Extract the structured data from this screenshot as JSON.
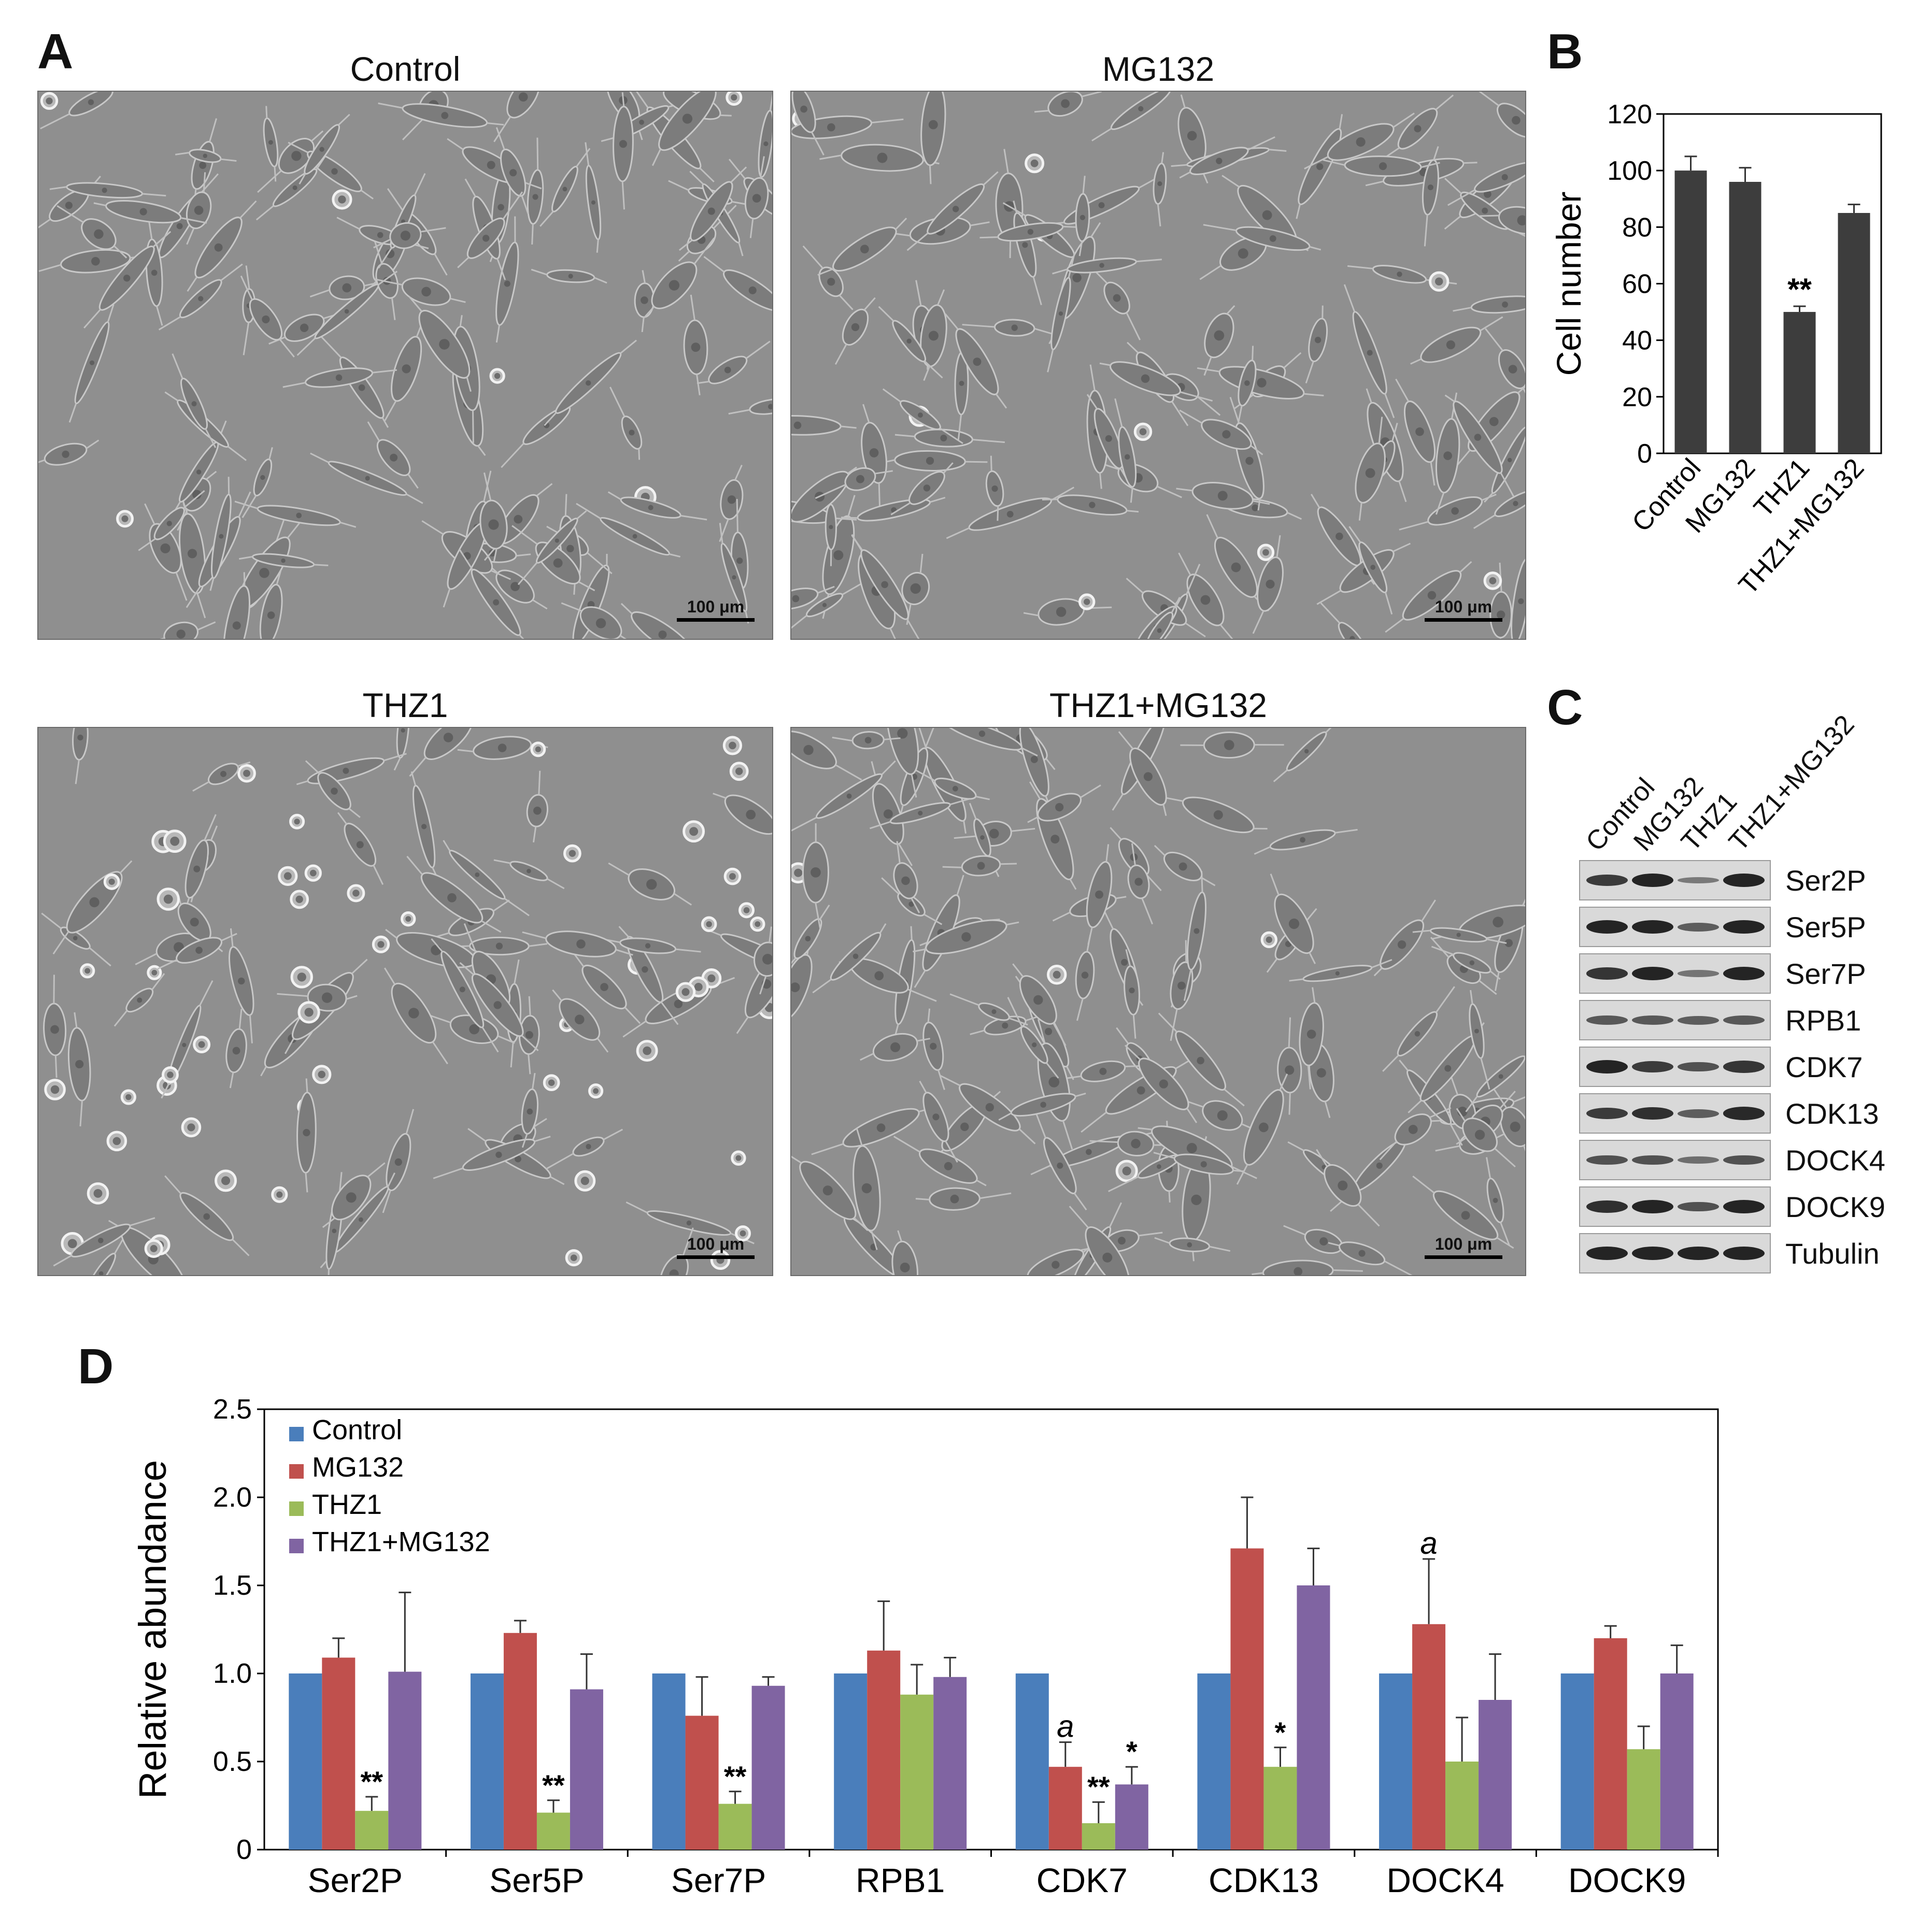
{
  "panels": {
    "a": "A",
    "b": "B",
    "c": "C",
    "d": "D"
  },
  "micrographs": [
    {
      "title": "Control",
      "scale_bar": "100 μm"
    },
    {
      "title": "MG132",
      "scale_bar": "100 μm"
    },
    {
      "title": "THZ1",
      "scale_bar": "100 μm"
    },
    {
      "title": "THZ1+MG132",
      "scale_bar": "100 μm"
    }
  ],
  "blot": {
    "lanes": [
      "Control",
      "MG132",
      "THZ1",
      "THZ1+MG132"
    ],
    "rows": [
      "Ser2P",
      "Ser5P",
      "Ser7P",
      "RPB1",
      "CDK7",
      "CDK13",
      "DOCK4",
      "DOCK9",
      "Tubulin"
    ]
  },
  "chart_data": [
    {
      "type": "bar",
      "ylabel": "Cell number",
      "categories": [
        "Control",
        "MG132",
        "THZ1",
        "THZ1+MG132"
      ],
      "values": [
        100,
        96,
        50,
        85
      ],
      "errors": [
        5,
        5,
        2,
        3
      ],
      "annotations": [
        "",
        "",
        "**",
        ""
      ],
      "ylim": [
        0,
        120
      ],
      "yticks": [
        0,
        20,
        40,
        60,
        80,
        100,
        120
      ],
      "color": "#3d3d3d"
    },
    {
      "type": "bar",
      "ylabel": "Relative abundance",
      "categories": [
        "Ser2P",
        "Ser5P",
        "Ser7P",
        "RPB1",
        "CDK7",
        "CDK13",
        "DOCK4",
        "DOCK9"
      ],
      "ylim": [
        0,
        2.5
      ],
      "yticks": [
        "0",
        "0.5",
        "1.0",
        "1.5",
        "2.0",
        "2.5"
      ],
      "legend_position": "top-left",
      "series": [
        {
          "name": "Control",
          "color": "#4a7ebb",
          "values": [
            1.0,
            1.0,
            1.0,
            1.0,
            1.0,
            1.0,
            1.0,
            1.0
          ],
          "errors": [
            0,
            0,
            0,
            0,
            0,
            0,
            0,
            0
          ],
          "annotations": [
            "",
            "",
            "",
            "",
            "",
            "",
            "",
            ""
          ]
        },
        {
          "name": "MG132",
          "color": "#c0504d",
          "values": [
            1.09,
            1.23,
            0.76,
            1.13,
            0.47,
            1.71,
            1.28,
            1.2
          ],
          "errors": [
            0.11,
            0.07,
            0.22,
            0.28,
            0.14,
            0.29,
            0.37,
            0.07
          ],
          "annotations": [
            "",
            "",
            "",
            "",
            "a",
            "",
            "a",
            ""
          ]
        },
        {
          "name": "THZ1",
          "color": "#9bbb59",
          "values": [
            0.22,
            0.21,
            0.26,
            0.88,
            0.15,
            0.47,
            0.5,
            0.57
          ],
          "errors": [
            0.08,
            0.07,
            0.07,
            0.17,
            0.12,
            0.11,
            0.25,
            0.13
          ],
          "annotations": [
            "**",
            "**",
            "**",
            "",
            "**",
            "*",
            "",
            ""
          ]
        },
        {
          "name": "THZ1+MG132",
          "color": "#8064a2",
          "values": [
            1.01,
            0.91,
            0.93,
            0.98,
            0.37,
            1.5,
            0.85,
            1.0
          ],
          "errors": [
            0.45,
            0.2,
            0.05,
            0.11,
            0.1,
            0.21,
            0.26,
            0.16
          ],
          "annotations": [
            "",
            "",
            "",
            "",
            "*",
            "",
            "",
            ""
          ]
        }
      ]
    }
  ]
}
